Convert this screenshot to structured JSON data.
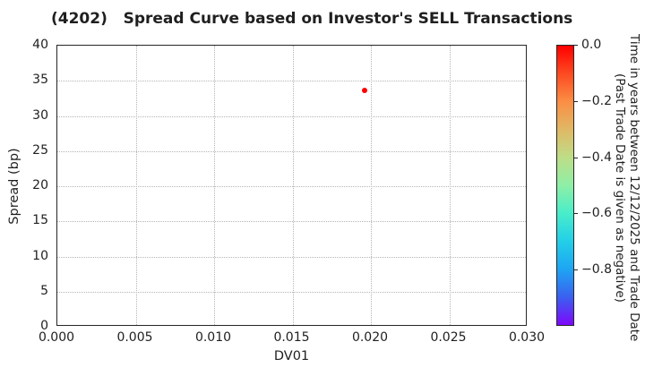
{
  "chart_data": {
    "type": "scatter",
    "title": "(4202)   Spread Curve based on Investor's SELL Transactions",
    "xlabel": "DV01",
    "ylabel": "Spread (bp)",
    "xlim": [
      0.0,
      0.03
    ],
    "ylim": [
      0,
      40
    ],
    "x_ticks": [
      {
        "value": 0.0,
        "label": "0.000"
      },
      {
        "value": 0.005,
        "label": "0.005"
      },
      {
        "value": 0.01,
        "label": "0.010"
      },
      {
        "value": 0.015,
        "label": "0.015"
      },
      {
        "value": 0.02,
        "label": "0.020"
      },
      {
        "value": 0.025,
        "label": "0.025"
      },
      {
        "value": 0.03,
        "label": "0.030"
      }
    ],
    "y_ticks": [
      {
        "value": 0,
        "label": "0"
      },
      {
        "value": 5,
        "label": "5"
      },
      {
        "value": 10,
        "label": "10"
      },
      {
        "value": 15,
        "label": "15"
      },
      {
        "value": 20,
        "label": "20"
      },
      {
        "value": 25,
        "label": "25"
      },
      {
        "value": 30,
        "label": "30"
      },
      {
        "value": 35,
        "label": "35"
      },
      {
        "value": 40,
        "label": "40"
      }
    ],
    "grid": true,
    "legend": "none",
    "points": [
      {
        "x": 0.0196,
        "y": 33.6,
        "time_years": 0.0,
        "color": "#ff0000"
      }
    ],
    "colorbar": {
      "label_line1": "Time in years between 12/12/2025 and Trade Date",
      "label_line2": "(Past Trade Date is given as negative)",
      "range_top_to_bottom": [
        0.0,
        -1.0
      ],
      "ticks": [
        {
          "value": 0.0,
          "label": "0.0"
        },
        {
          "value": -0.2,
          "label": "−0.2"
        },
        {
          "value": -0.4,
          "label": "−0.4"
        },
        {
          "value": -0.6,
          "label": "−0.6"
        },
        {
          "value": -0.8,
          "label": "−0.8"
        }
      ],
      "gradient_top_to_bottom": [
        "#ff0000",
        "#fc4a21",
        "#fb8e44",
        "#e0b865",
        "#bedd87",
        "#8eefa6",
        "#49edca",
        "#23cfe8",
        "#1ea5f3",
        "#3a60f0",
        "#7e08fb"
      ]
    },
    "colors": {
      "grid": "#b5b5b5",
      "spine": "#262626",
      "text": "#1f1f1f",
      "background": "#ffffff"
    }
  }
}
